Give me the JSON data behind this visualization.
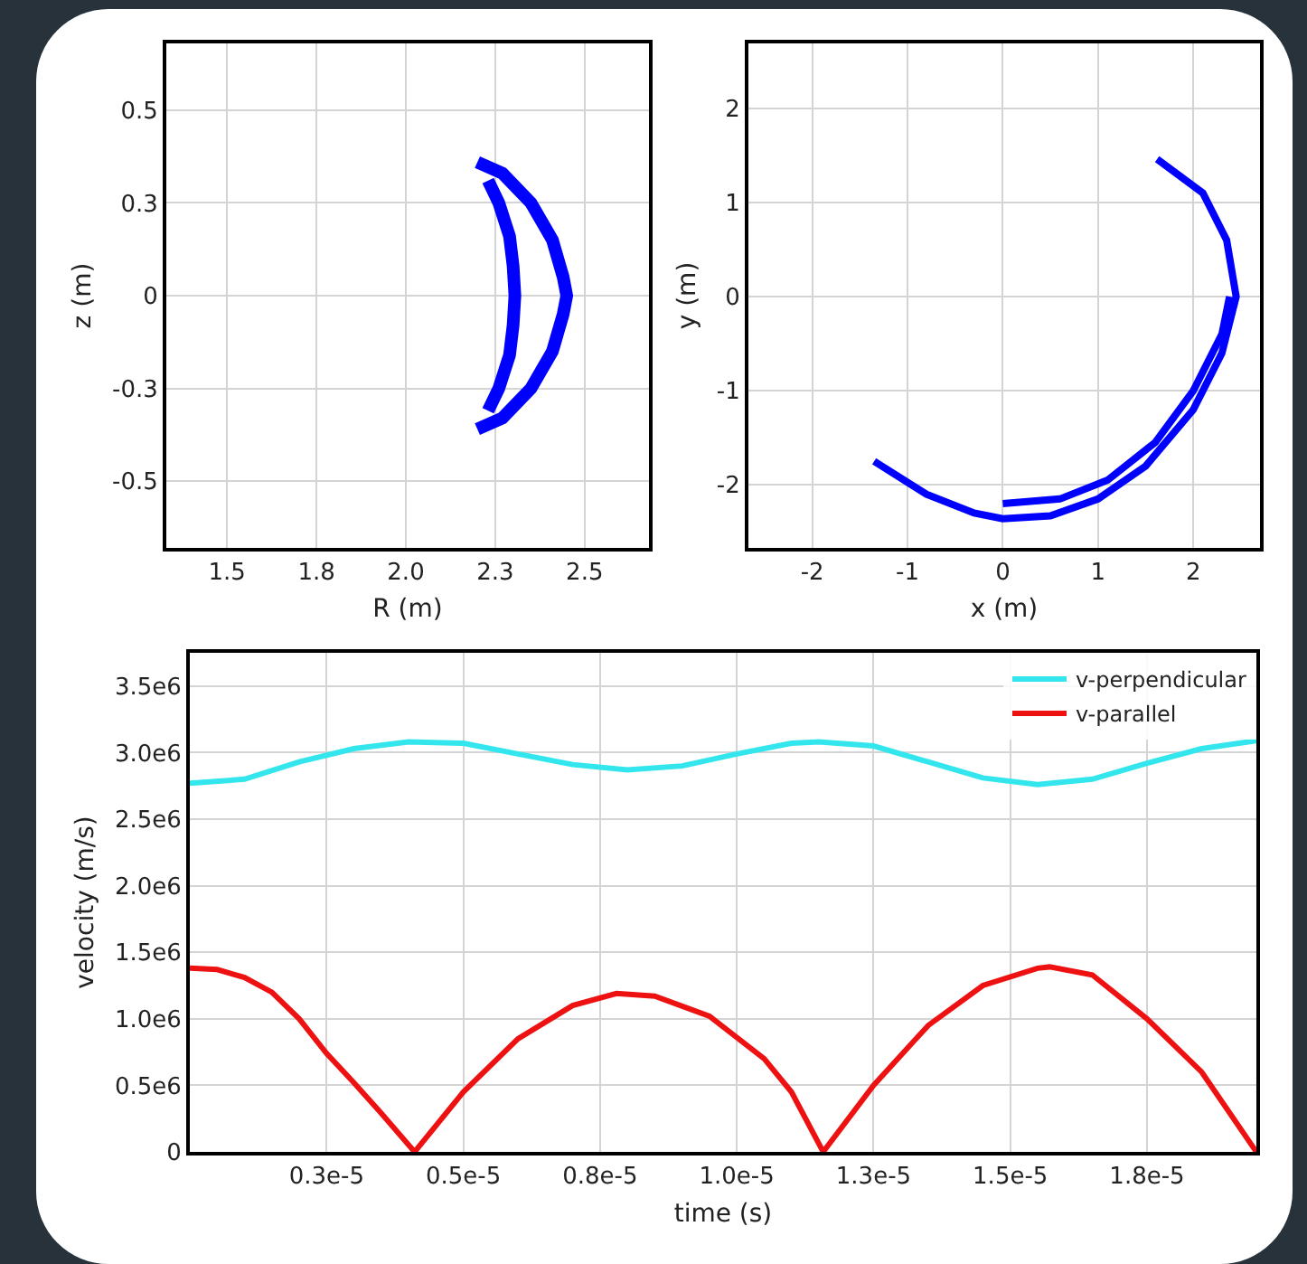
{
  "chart_data": [
    {
      "type": "line",
      "xlabel": "R (m)",
      "ylabel": "z (m)",
      "xlim": [
        1.33,
        2.68
      ],
      "ylim": [
        -0.68,
        0.68
      ],
      "xticks": [
        1.5,
        {
          "value": 1.75,
          "label": "1.8"
        },
        {
          "value": 2,
          "label": "2.0"
        },
        {
          "value": 2.25,
          "label": "2.3"
        },
        2.5
      ],
      "yticks": [
        0.5,
        {
          "value": 0.25,
          "label": "0.3"
        },
        0,
        {
          "value": -0.25,
          "label": "-0.3"
        },
        -0.5
      ],
      "grid": true,
      "legend": false,
      "series": [
        {
          "color": "#0000ff",
          "x": [
            2.2,
            2.27,
            2.35,
            2.41,
            2.44,
            2.45,
            2.44,
            2.41,
            2.35,
            2.27,
            2.2
          ],
          "values": [
            0.36,
            0.33,
            0.25,
            0.15,
            0.05,
            0,
            -0.05,
            -0.15,
            -0.25,
            -0.33,
            -0.36
          ]
        },
        {
          "color": "#0000ff",
          "x": [
            2.23,
            2.26,
            2.29,
            2.3,
            2.305,
            2.3,
            2.29,
            2.26,
            2.23
          ],
          "values": [
            -0.31,
            -0.25,
            -0.16,
            -0.08,
            0,
            0.08,
            0.16,
            0.25,
            0.31
          ]
        }
      ]
    },
    {
      "type": "line",
      "xlabel": "x (m)",
      "ylabel": "y (m)",
      "xlim": [
        -2.67,
        2.7
      ],
      "ylim": [
        -2.67,
        2.69
      ],
      "xticks": [
        -2,
        -1,
        0,
        1,
        2
      ],
      "yticks": [
        2,
        1,
        0,
        -1,
        -2
      ],
      "grid": true,
      "legend": false,
      "series": [
        {
          "color": "#0000ff",
          "x": [
            -1.35,
            -0.8,
            -0.3,
            0,
            0.5,
            1.0,
            1.5,
            2.0,
            2.3,
            2.45,
            2.35,
            2.1,
            1.62,
            null,
            0,
            0.6,
            1.1,
            1.6,
            2.0,
            2.3,
            2.38
          ],
          "values": [
            -1.75,
            -2.1,
            -2.3,
            -2.36,
            -2.33,
            -2.15,
            -1.8,
            -1.2,
            -0.6,
            0,
            0.6,
            1.1,
            1.46,
            null,
            -2.2,
            -2.15,
            -1.95,
            -1.55,
            -1.0,
            -0.4,
            0
          ]
        }
      ]
    },
    {
      "type": "line",
      "xlabel": "time (s)",
      "ylabel": "velocity (m/s)",
      "xlim": [
        0,
        1.95e-05
      ],
      "ylim": [
        0,
        3750000
      ],
      "xticks": [
        {
          "value": 2.5e-06,
          "label": "0.3e-5"
        },
        {
          "value": 5e-06,
          "label": "0.5e-5"
        },
        {
          "value": 7.5e-06,
          "label": "0.8e-5"
        },
        {
          "value": 1e-05,
          "label": "1.0e-5"
        },
        {
          "value": 1.25e-05,
          "label": "1.3e-5"
        },
        {
          "value": 1.5e-05,
          "label": "1.5e-5"
        },
        {
          "value": 1.75e-05,
          "label": "1.8e-5"
        }
      ],
      "yticks": [
        0,
        {
          "value": 500000,
          "label": "0.5e6"
        },
        {
          "value": 1000000,
          "label": "1.0e6"
        },
        {
          "value": 1500000,
          "label": "1.5e6"
        },
        {
          "value": 2000000,
          "label": "2.0e6"
        },
        {
          "value": 2500000,
          "label": "2.5e6"
        },
        {
          "value": 3000000,
          "label": "3.0e6"
        },
        {
          "value": 3500000,
          "label": "3.5e6"
        }
      ],
      "grid": true,
      "legend": "top right",
      "series": [
        {
          "name": "v-perpendicular",
          "color": "#33e6ee",
          "x": [
            0,
            1e-06,
            2e-06,
            3e-06,
            4e-06,
            5e-06,
            6e-06,
            7e-06,
            8e-06,
            9e-06,
            1e-05,
            1.1e-05,
            1.15e-05,
            1.25e-05,
            1.35e-05,
            1.45e-05,
            1.55e-05,
            1.65e-05,
            1.75e-05,
            1.85e-05,
            1.95e-05
          ],
          "values": [
            2770000,
            2800000,
            2930000,
            3030000,
            3080000,
            3070000,
            2990000,
            2910000,
            2870000,
            2900000,
            2990000,
            3070000,
            3080000,
            3050000,
            2930000,
            2810000,
            2760000,
            2800000,
            2920000,
            3030000,
            3090000
          ]
        },
        {
          "name": "v-parallel",
          "color": "#ee1111",
          "x": [
            0,
            5e-07,
            1e-06,
            1.5e-06,
            2e-06,
            2.5e-06,
            3e-06,
            3.5e-06,
            4.11e-06,
            5e-06,
            6e-06,
            7e-06,
            7.8e-06,
            8.5e-06,
            9.5e-06,
            1.05e-05,
            1.1e-05,
            1.158e-05,
            1.25e-05,
            1.35e-05,
            1.45e-05,
            1.55e-05,
            1.572e-05,
            1.65e-05,
            1.75e-05,
            1.85e-05,
            1.95e-05
          ],
          "values": [
            1380000,
            1370000,
            1310000,
            1200000,
            1000000,
            740000,
            520000,
            290000,
            0,
            450000,
            850000,
            1100000,
            1190000,
            1170000,
            1020000,
            700000,
            450000,
            0,
            500000,
            950000,
            1250000,
            1380000,
            1390000,
            1330000,
            1000000,
            600000,
            0
          ]
        }
      ]
    }
  ]
}
